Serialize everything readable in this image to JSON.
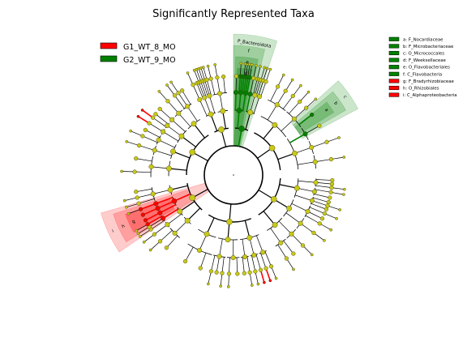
{
  "title": "Significantly Represented Taxa",
  "groups": [
    {
      "name": "G1_WT_8_MO",
      "color": "#ff0000"
    },
    {
      "name": "G2_WT_9_MO",
      "color": "#008000"
    }
  ],
  "key_legend": [
    {
      "text": "a: F_Nocardiaceae",
      "color": "#008000"
    },
    {
      "text": "b: F_Microbacteriaceae",
      "color": "#008000"
    },
    {
      "text": "c: O_Micrococcales",
      "color": "#008000"
    },
    {
      "text": "d: F_Weeksellaceae",
      "color": "#008000"
    },
    {
      "text": "e: O_Flavobacteriales",
      "color": "#008000"
    },
    {
      "text": "f: C_Flavobacteria",
      "color": "#008000"
    },
    {
      "text": "g: F_Bradyrhizobiaceae",
      "color": "#ff0000"
    },
    {
      "text": "h: O_Rhizobiales",
      "color": "#ff0000"
    },
    {
      "text": "i: C_Alphaproteobacteria",
      "color": "#ff0000"
    }
  ],
  "clade_labels": [
    {
      "text": "P_Bacteroidota"
    },
    {
      "text": "f"
    },
    {
      "text": "e"
    },
    {
      "text": "d"
    },
    {
      "text": "a"
    },
    {
      "text": "b"
    },
    {
      "text": "c"
    },
    {
      "text": "i"
    },
    {
      "text": "h"
    },
    {
      "text": "g"
    }
  ],
  "colors": {
    "node_default": "#c8c81a",
    "node_stroke": "#333300",
    "enriched_g1": "#ff0000",
    "enriched_g2": "#008000",
    "branch": "#000000"
  }
}
